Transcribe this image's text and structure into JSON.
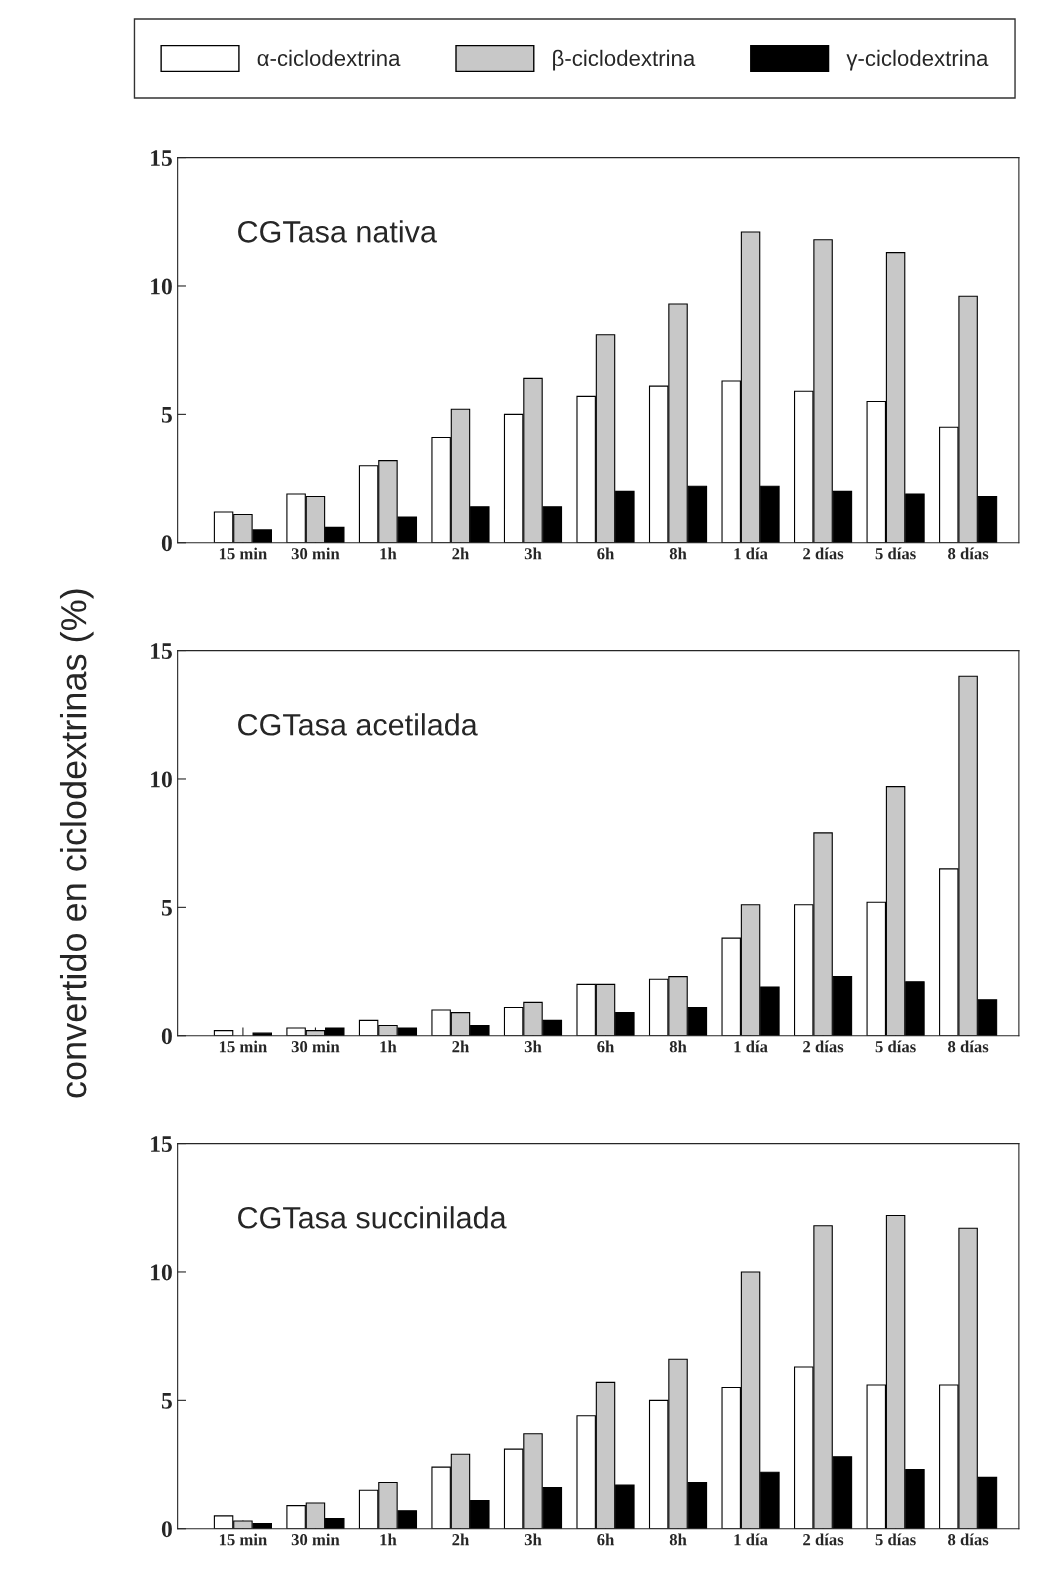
{
  "chart_data": [
    {
      "type": "bar",
      "title": "CGTasa nativa",
      "categories": [
        "15 min",
        "30 min",
        "1h",
        "2h",
        "3h",
        "6h",
        "8h",
        "1 día",
        "2 días",
        "5 días",
        "8 días"
      ],
      "ylim": [
        0,
        15
      ],
      "yticks": [
        0,
        5,
        10,
        15
      ],
      "grid": false,
      "legend": "top",
      "series": [
        {
          "name": "α-ciclodextrina",
          "color": "#ffffff",
          "values": [
            1.2,
            1.9,
            3.0,
            4.1,
            5.0,
            5.7,
            6.1,
            6.3,
            5.9,
            5.5,
            4.5
          ]
        },
        {
          "name": "β-ciclodextrina",
          "color": "#c8c8c8",
          "values": [
            1.1,
            1.8,
            3.2,
            5.2,
            6.4,
            8.1,
            9.3,
            12.1,
            11.8,
            11.3,
            9.6
          ]
        },
        {
          "name": "γ-ciclodextrina",
          "color": "#000000",
          "values": [
            0.5,
            0.6,
            1.0,
            1.4,
            1.4,
            2.0,
            2.2,
            2.2,
            2.0,
            1.9,
            1.8
          ]
        }
      ]
    },
    {
      "type": "bar",
      "title": "CGTasa acetilada",
      "ylabel": "convertido en ciclodextrinas (%)",
      "categories": [
        "15 min",
        "30 min",
        "1h",
        "2h",
        "3h",
        "6h",
        "8h",
        "1 día",
        "2 días",
        "5 días",
        "8 días"
      ],
      "ylim": [
        0,
        15
      ],
      "yticks": [
        0,
        5,
        10,
        15
      ],
      "grid": false,
      "series": [
        {
          "name": "α-ciclodextrina",
          "color": "#ffffff",
          "values": [
            0.2,
            0.3,
            0.6,
            1.0,
            1.1,
            2.0,
            2.2,
            3.8,
            5.1,
            5.2,
            6.5
          ]
        },
        {
          "name": "β-ciclodextrina",
          "color": "#c8c8c8",
          "values": [
            null,
            0.2,
            0.4,
            0.9,
            1.3,
            2.0,
            2.3,
            5.1,
            7.9,
            9.7,
            14.0
          ]
        },
        {
          "name": "γ-ciclodextrina",
          "color": "#000000",
          "values": [
            0.1,
            0.3,
            0.3,
            0.4,
            0.6,
            0.9,
            1.1,
            1.9,
            2.3,
            2.1,
            1.4
          ]
        }
      ]
    },
    {
      "type": "bar",
      "title": "CGTasa succinilada",
      "categories": [
        "15 min",
        "30 min",
        "1h",
        "2h",
        "3h",
        "6h",
        "8h",
        "1 día",
        "2 días",
        "5 días",
        "8 días"
      ],
      "ylim": [
        0,
        15
      ],
      "yticks": [
        0,
        5,
        10,
        15
      ],
      "grid": false,
      "series": [
        {
          "name": "α-ciclodextrina",
          "color": "#ffffff",
          "values": [
            0.5,
            0.9,
            1.5,
            2.4,
            3.1,
            4.4,
            5.0,
            5.5,
            6.3,
            5.6,
            5.6
          ]
        },
        {
          "name": "β-ciclodextrina",
          "color": "#c8c8c8",
          "values": [
            0.3,
            1.0,
            1.8,
            2.9,
            3.7,
            5.7,
            6.6,
            10.0,
            11.8,
            12.2,
            11.7
          ]
        },
        {
          "name": "γ-ciclodextrina",
          "color": "#000000",
          "values": [
            0.2,
            0.4,
            0.7,
            1.1,
            1.6,
            1.7,
            1.8,
            2.2,
            2.8,
            2.3,
            2.0
          ]
        }
      ]
    }
  ]
}
